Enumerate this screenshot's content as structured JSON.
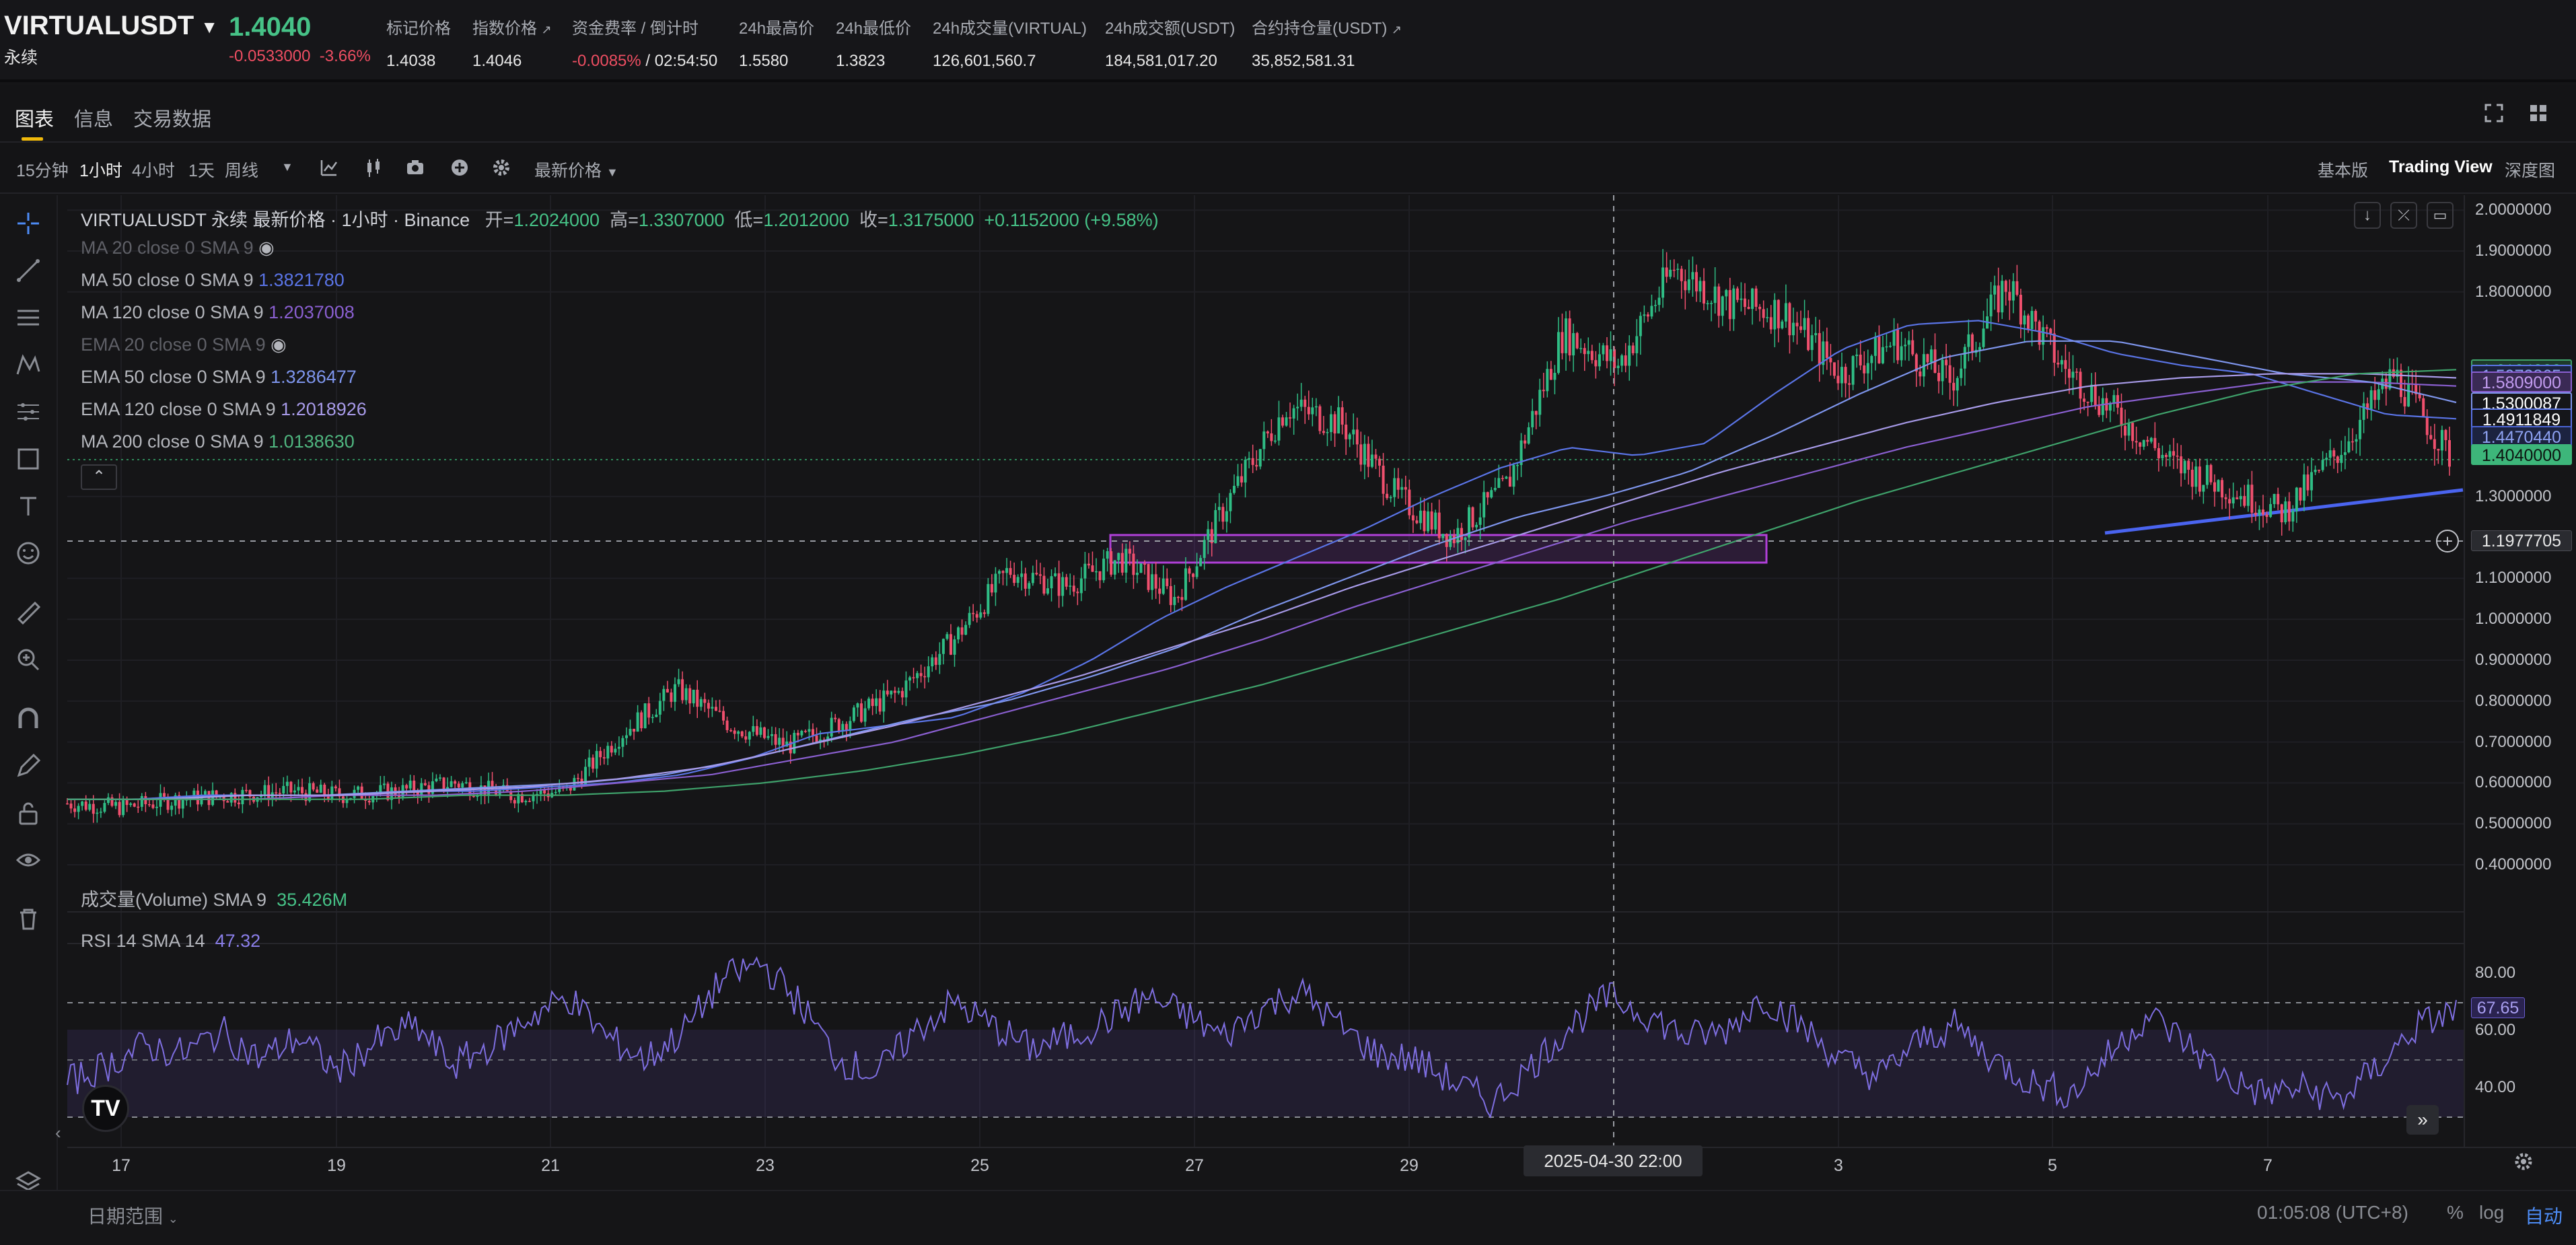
{
  "header": {
    "symbol": "VIRTUALUSDT",
    "contract_type": "永续",
    "last_price": "1.4040",
    "change": "-0.0533000",
    "change_pct": "-3.66%",
    "stats": [
      {
        "label": "标记价格",
        "value": "1.4038"
      },
      {
        "label": "指数价格",
        "value": "1.4046"
      },
      {
        "label": "资金费率 / 倒计时",
        "value_red": "-0.0085%",
        "value": "/ 02:54:50"
      },
      {
        "label": "24h最高价",
        "value": "1.5580"
      },
      {
        "label": "24h最低价",
        "value": "1.3823"
      },
      {
        "label": "24h成交量(VIRTUAL)",
        "value": "126,601,560.7"
      },
      {
        "label": "24h成交额(USDT)",
        "value": "184,581,017.20"
      },
      {
        "label": "合约持仓量(USDT)",
        "value": "35,852,581.31"
      }
    ]
  },
  "tabs": [
    "图表",
    "信息",
    "交易数据"
  ],
  "toolbar": {
    "intervals": [
      "15分钟",
      "1小时",
      "4小时",
      "1天",
      "周线"
    ],
    "active_interval": "1小时",
    "price_type": "最新价格",
    "views": [
      "基本版",
      "Trading View",
      "深度图"
    ],
    "active_view": "Trading View"
  },
  "chart_legend": {
    "title": "VIRTUALUSDT 永续 最新价格 · 1小时 · Binance",
    "ohlc": {
      "open_label": "开=",
      "open": "1.2024000",
      "high_label": "高=",
      "high": "1.3307000",
      "low_label": "低=",
      "low": "1.2012000",
      "close_label": "收=",
      "close": "1.3175000",
      "change": "+0.1152000 (+9.58%)"
    },
    "indicators": [
      {
        "label": "MA 20 close 0 SMA 9",
        "value": "",
        "color": "#5f6067",
        "hidden": true
      },
      {
        "label": "MA 50 close 0 SMA 9",
        "value": "1.3821780",
        "color": "#5a74e6"
      },
      {
        "label": "MA 120 close 0 SMA 9",
        "value": "1.2037008",
        "color": "#8a5fd0"
      },
      {
        "label": "EMA 20 close 0 SMA 9",
        "value": "",
        "color": "#5f6067",
        "hidden": true
      },
      {
        "label": "EMA 50 close 0 SMA 9",
        "value": "1.3286477",
        "color": "#7e95ec"
      },
      {
        "label": "EMA 120 close 0 SMA 9",
        "value": "1.2018926",
        "color": "#a79ae8"
      },
      {
        "label": "MA 200 close 0 SMA 9",
        "value": "1.0138630",
        "color": "#4fb57f"
      }
    ],
    "volume_label": "成交量(Volume) SMA 9",
    "volume_value": "35.426M",
    "rsi_label": "RSI 14 SMA 14",
    "rsi_value": "47.32"
  },
  "price_tags": [
    {
      "value": "1.6104000",
      "bg": "#1e3a2b",
      "fg": "#4fdc93",
      "border": "#3fa26b",
      "price": 1.6104
    },
    {
      "value": "1.5973865",
      "bg": "#1c2340",
      "fg": "#8ea2f2",
      "border": "#5a74e6",
      "price": 1.5974
    },
    {
      "value": "1.5809000",
      "bg": "#3a2a55",
      "fg": "#c29bf0",
      "border": "#8a5fd0",
      "price": 1.5809
    },
    {
      "value": "1.5300087",
      "bg": "#15161a",
      "fg": "#ffffff",
      "border": "#7e95ec",
      "price": 1.53
    },
    {
      "value": "1.4911849",
      "bg": "#15161a",
      "fg": "#ffffff",
      "border": "#5a74e6",
      "price": 1.4912
    },
    {
      "value": "1.4470440",
      "bg": "#1c2340",
      "fg": "#8ea2f2",
      "border": "#4a64d6",
      "price": 1.447
    },
    {
      "value": "1.4040000",
      "bg": "#3db67a",
      "fg": "#0d1511",
      "border": "#3db67a",
      "price": 1.404
    }
  ],
  "crosshair_price": "1.1977705",
  "crosshair_time": "2025-04-30  22:00",
  "rsi_value_tag": "67.65",
  "chart_data": {
    "type": "line",
    "title": "VIRTUALUSDT 永续 最新价格 · 1小时 · Binance",
    "x_ticks": [
      "17",
      "19",
      "21",
      "23",
      "25",
      "27",
      "29",
      "3",
      "5",
      "7"
    ],
    "y_ticks": [
      "2.0000000",
      "1.9000000",
      "1.8000000",
      "1.3000000",
      "1.1000000",
      "1.0000000",
      "0.9000000",
      "0.8000000",
      "0.7000000",
      "0.6000000",
      "0.5000000",
      "0.4000000"
    ],
    "ylim": [
      0.4,
      2.0
    ],
    "rsi_ticks": [
      "80.00",
      "60.00",
      "40.00"
    ],
    "series": [
      {
        "name": "VIRTUALUSDT",
        "values": [
          0.55,
          0.54,
          0.56,
          0.57,
          0.58,
          0.57,
          0.58,
          0.6,
          0.57,
          0.58,
          0.72,
          0.83,
          0.74,
          0.69,
          0.75,
          0.82,
          0.95,
          1.12,
          1.08,
          1.15,
          1.05,
          1.3,
          1.52,
          1.48,
          1.3,
          1.2,
          1.33,
          1.7,
          1.62,
          1.86,
          1.77,
          1.75,
          1.6,
          1.68,
          1.58,
          1.82,
          1.62,
          1.5,
          1.38,
          1.32,
          1.26,
          1.41,
          1.6,
          1.4
        ]
      },
      {
        "name": "MA 50",
        "values": [
          0.56,
          0.56,
          0.57,
          0.57,
          0.57,
          0.58,
          0.58,
          0.59,
          0.6,
          0.62,
          0.66,
          0.72,
          0.74,
          0.76,
          0.82,
          0.9,
          1.0,
          1.08,
          1.15,
          1.22,
          1.3,
          1.37,
          1.42,
          1.4,
          1.43,
          1.55,
          1.66,
          1.72,
          1.73,
          1.7,
          1.65,
          1.62,
          1.6,
          1.55,
          1.5,
          1.49
        ]
      },
      {
        "name": "MA 120",
        "values": [
          0.56,
          0.56,
          0.56,
          0.57,
          0.57,
          0.58,
          0.6,
          0.62,
          0.66,
          0.7,
          0.76,
          0.82,
          0.88,
          0.95,
          1.03,
          1.1,
          1.17,
          1.24,
          1.3,
          1.36,
          1.42,
          1.47,
          1.52,
          1.55,
          1.58,
          1.58,
          1.57
        ]
      },
      {
        "name": "EMA 50",
        "values": [
          0.56,
          0.56,
          0.57,
          0.57,
          0.58,
          0.59,
          0.6,
          0.62,
          0.66,
          0.71,
          0.76,
          0.8,
          0.86,
          0.93,
          1.02,
          1.1,
          1.18,
          1.25,
          1.3,
          1.36,
          1.45,
          1.55,
          1.64,
          1.68,
          1.68,
          1.64,
          1.6,
          1.58,
          1.53
        ]
      },
      {
        "name": "EMA 120",
        "values": [
          0.56,
          0.56,
          0.57,
          0.57,
          0.58,
          0.59,
          0.61,
          0.64,
          0.69,
          0.74,
          0.8,
          0.86,
          0.93,
          1.0,
          1.08,
          1.15,
          1.22,
          1.29,
          1.36,
          1.42,
          1.48,
          1.53,
          1.57,
          1.59,
          1.6,
          1.6,
          1.59
        ]
      },
      {
        "name": "MA 200",
        "values": [
          0.56,
          0.56,
          0.56,
          0.56,
          0.57,
          0.57,
          0.58,
          0.6,
          0.63,
          0.67,
          0.72,
          0.78,
          0.84,
          0.91,
          0.98,
          1.05,
          1.13,
          1.21,
          1.29,
          1.36,
          1.43,
          1.5,
          1.56,
          1.6,
          1.61
        ]
      },
      {
        "name": "RSI 14",
        "values": [
          42,
          48,
          55,
          52,
          60,
          50,
          58,
          46,
          56,
          62,
          48,
          55,
          65,
          72,
          58,
          50,
          60,
          78,
          84,
          70,
          50,
          45,
          60,
          70,
          62,
          54,
          58,
          64,
          72,
          66,
          58,
          68,
          74,
          62,
          52,
          50,
          42,
          35,
          48,
          62,
          72,
          66,
          58,
          60,
          72,
          62,
          50,
          44,
          56,
          62,
          50,
          42,
          38,
          52,
          66,
          56,
          44,
          38,
          40,
          36,
          48,
          62,
          67
        ]
      }
    ]
  },
  "bottom": {
    "date_range": "日期范围",
    "time": "01:05:08 (UTC+8)",
    "pct": "%",
    "log": "log",
    "auto": "自动"
  }
}
